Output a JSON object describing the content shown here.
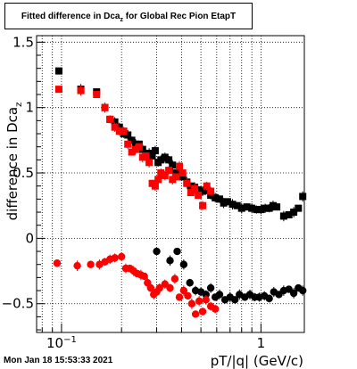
{
  "title": {
    "prefix": "Fitted difference in Dca",
    "subscript": "z",
    "suffix": " for Global Rec Pion EtapT"
  },
  "timestamp": "Mon Jan 18 15:53:33 2021",
  "chart_data": {
    "type": "scatter",
    "title": "Fitted difference in Dca_z for Global Rec Pion EtapT",
    "xlabel": "pT/|q| (GeV/c)",
    "ylabel_prefix": "difference in Dca",
    "ylabel_subscript": "z",
    "x_scale": "log",
    "xlim": [
      0.075,
      1.65
    ],
    "ylim": [
      -0.72,
      1.55
    ],
    "x_ticks": [
      {
        "value": 0.1,
        "base": "10",
        "exp": "−1"
      },
      {
        "value": 1,
        "label": "1"
      }
    ],
    "y_ticks": [
      {
        "value": -0.5,
        "label": "−0.5"
      },
      {
        "value": 0,
        "label": "0"
      },
      {
        "value": 0.5,
        "label": "0.5"
      },
      {
        "value": 1,
        "label": "1"
      },
      {
        "value": 1.5,
        "label": "1.5"
      }
    ],
    "grid": true,
    "colors": {
      "black": "#000000",
      "red": "#ff0000"
    },
    "series": [
      {
        "marker": "square",
        "color": "#000000",
        "x": [
          0.097,
          0.125,
          0.15,
          0.165,
          0.175,
          0.185,
          0.195,
          0.205,
          0.215,
          0.225,
          0.235,
          0.245,
          0.255,
          0.265,
          0.275,
          0.285,
          0.295,
          0.305,
          0.315,
          0.33,
          0.345,
          0.36,
          0.375,
          0.39,
          0.405,
          0.425,
          0.445,
          0.465,
          0.485,
          0.51,
          0.535,
          0.56,
          0.59,
          0.62,
          0.65,
          0.68,
          0.72,
          0.76,
          0.8,
          0.85,
          0.9,
          0.95,
          1.0,
          1.05,
          1.1,
          1.15,
          1.2,
          1.3,
          1.38,
          1.46,
          1.54,
          1.62
        ],
        "y": [
          1.28,
          1.14,
          1.12,
          1.0,
          0.91,
          0.89,
          0.85,
          0.8,
          0.79,
          0.75,
          0.72,
          0.72,
          0.68,
          0.65,
          0.65,
          0.63,
          0.67,
          0.58,
          0.6,
          0.62,
          0.6,
          0.56,
          0.5,
          0.55,
          0.47,
          0.43,
          0.4,
          0.39,
          0.37,
          0.36,
          0.37,
          0.33,
          0.31,
          0.3,
          0.27,
          0.28,
          0.26,
          0.25,
          0.23,
          0.24,
          0.23,
          0.22,
          0.22,
          0.23,
          0.23,
          0.25,
          0.24,
          0.17,
          0.18,
          0.2,
          0.23,
          0.32
        ]
      },
      {
        "marker": "square",
        "color": "#ff0000",
        "x": [
          0.097,
          0.125,
          0.15,
          0.165,
          0.175,
          0.185,
          0.195,
          0.205,
          0.215,
          0.225,
          0.235,
          0.245,
          0.255,
          0.265,
          0.275,
          0.285,
          0.295,
          0.305,
          0.315,
          0.33,
          0.345,
          0.36,
          0.375,
          0.39,
          0.405,
          0.425,
          0.445,
          0.465,
          0.485,
          0.51,
          0.535,
          0.56
        ],
        "y": [
          1.14,
          1.13,
          1.1,
          1.0,
          0.91,
          0.85,
          0.82,
          0.82,
          0.72,
          0.66,
          0.68,
          0.7,
          0.62,
          0.63,
          0.58,
          0.42,
          0.4,
          0.45,
          0.5,
          0.48,
          0.52,
          0.45,
          0.47,
          0.55,
          0.5,
          0.42,
          0.35,
          0.38,
          0.33,
          0.25,
          0.4,
          0.36
        ]
      },
      {
        "marker": "circle",
        "color": "#000000",
        "x": [
          0.3,
          0.35,
          0.38,
          0.41,
          0.44,
          0.47,
          0.5,
          0.53,
          0.56,
          0.59,
          0.62,
          0.66,
          0.7,
          0.74,
          0.78,
          0.83,
          0.88,
          0.93,
          0.98,
          1.04,
          1.1,
          1.16,
          1.23,
          1.3,
          1.38,
          1.46,
          1.54,
          1.62
        ],
        "y": [
          -0.1,
          -0.17,
          -0.1,
          -0.2,
          -0.34,
          -0.4,
          -0.41,
          -0.43,
          -0.38,
          -0.45,
          -0.43,
          -0.47,
          -0.45,
          -0.47,
          -0.43,
          -0.45,
          -0.43,
          -0.45,
          -0.45,
          -0.44,
          -0.46,
          -0.41,
          -0.43,
          -0.4,
          -0.39,
          -0.42,
          -0.38,
          -0.4
        ]
      },
      {
        "marker": "circle",
        "color": "#ff0000",
        "x": [
          0.095,
          0.12,
          0.14,
          0.155,
          0.165,
          0.175,
          0.185,
          0.2,
          0.21,
          0.22,
          0.23,
          0.24,
          0.25,
          0.26,
          0.27,
          0.28,
          0.29,
          0.3,
          0.31,
          0.33,
          0.35,
          0.37,
          0.39,
          0.41,
          0.43,
          0.45,
          0.47,
          0.49,
          0.51,
          0.53,
          0.56,
          0.59
        ],
        "y": [
          -0.19,
          -0.21,
          -0.2,
          -0.2,
          -0.18,
          -0.16,
          -0.15,
          -0.14,
          -0.23,
          -0.23,
          -0.25,
          -0.27,
          -0.28,
          -0.29,
          -0.34,
          -0.38,
          -0.43,
          -0.41,
          -0.38,
          -0.35,
          -0.38,
          -0.31,
          -0.45,
          -0.4,
          -0.44,
          -0.5,
          -0.58,
          -0.48,
          -0.56,
          -0.47,
          -0.52,
          -0.54
        ]
      }
    ]
  }
}
